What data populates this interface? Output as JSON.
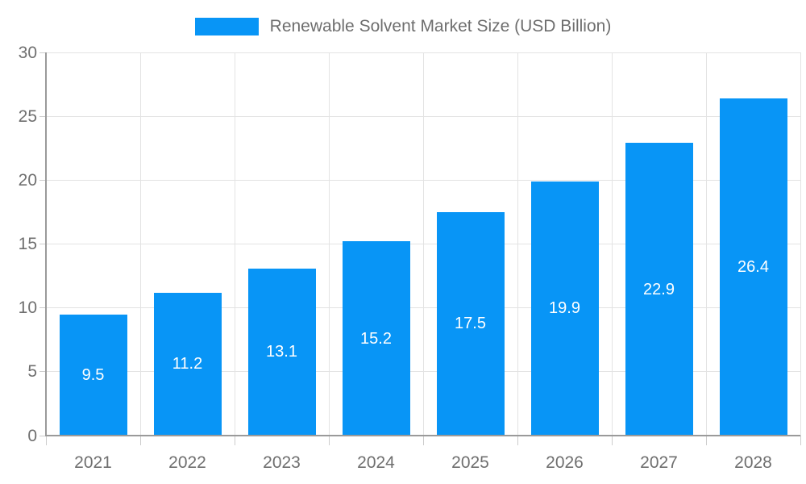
{
  "chart_data": {
    "type": "bar",
    "title": "Renewable Solvent Market Size (USD Billion)",
    "categories": [
      "2021",
      "2022",
      "2023",
      "2024",
      "2025",
      "2026",
      "2027",
      "2028"
    ],
    "values": [
      9.5,
      11.2,
      13.1,
      15.2,
      17.5,
      19.9,
      22.9,
      26.4
    ],
    "bar_value_labels": [
      "9.5",
      "11.2",
      "13.1",
      "15.2",
      "17.5",
      "19.9",
      "22.9",
      "26.4"
    ],
    "xlabel": "",
    "ylabel": "",
    "ylim": [
      0,
      30
    ],
    "yticks": [
      0,
      5,
      10,
      15,
      20,
      25,
      30
    ],
    "ytick_labels": [
      "0",
      "5",
      "10",
      "15",
      "20",
      "25",
      "30"
    ],
    "grid": "on",
    "legend_position": "top-center",
    "colors": {
      "bar": "#0895f6",
      "axis_text": "#6f6f6f",
      "legend_text": "#6e6e6e",
      "gridline": "#e3e3e3",
      "axis_line": "#9a9a9a",
      "tick": "#cccccc",
      "bar_label_text": "#ffffff",
      "background": "#ffffff"
    }
  }
}
